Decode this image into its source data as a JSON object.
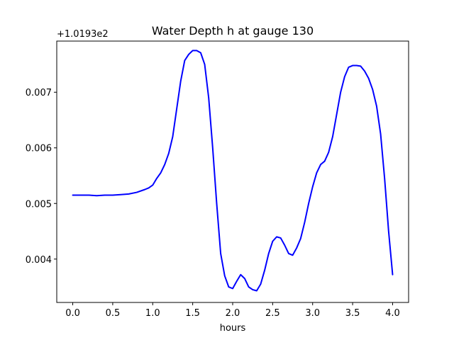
{
  "chart_data": {
    "type": "line",
    "title": "Water Depth h at gauge 130",
    "xlabel": "hours",
    "ylabel": "",
    "offset_label": "+1.0193e2",
    "xlim": [
      -0.2,
      4.2
    ],
    "ylim": [
      0.00322,
      0.00792
    ],
    "x_ticks": [
      0.0,
      0.5,
      1.0,
      1.5,
      2.0,
      2.5,
      3.0,
      3.5,
      4.0
    ],
    "x_tick_labels": [
      "0.0",
      "0.5",
      "1.0",
      "1.5",
      "2.0",
      "2.5",
      "3.0",
      "3.5",
      "4.0"
    ],
    "y_ticks": [
      0.004,
      0.005,
      0.006,
      0.007
    ],
    "y_tick_labels": [
      "0.004",
      "0.005",
      "0.006",
      "0.007"
    ],
    "grid": false,
    "series": [
      {
        "color": "#0000ff",
        "x": [
          0.0,
          0.1,
          0.2,
          0.3,
          0.4,
          0.5,
          0.6,
          0.7,
          0.8,
          0.9,
          0.95,
          1.0,
          1.05,
          1.1,
          1.15,
          1.2,
          1.25,
          1.3,
          1.35,
          1.4,
          1.45,
          1.5,
          1.55,
          1.6,
          1.65,
          1.7,
          1.75,
          1.8,
          1.85,
          1.9,
          1.95,
          2.0,
          2.05,
          2.1,
          2.15,
          2.2,
          2.25,
          2.3,
          2.35,
          2.4,
          2.45,
          2.5,
          2.55,
          2.6,
          2.65,
          2.7,
          2.75,
          2.8,
          2.85,
          2.9,
          2.95,
          3.0,
          3.05,
          3.1,
          3.15,
          3.2,
          3.25,
          3.3,
          3.35,
          3.4,
          3.45,
          3.5,
          3.55,
          3.6,
          3.65,
          3.7,
          3.75,
          3.8,
          3.85,
          3.9,
          3.95,
          4.0
        ],
        "y": [
          0.00515,
          0.00515,
          0.00515,
          0.00514,
          0.00515,
          0.00515,
          0.00516,
          0.00517,
          0.0052,
          0.00525,
          0.00528,
          0.00533,
          0.00545,
          0.00555,
          0.0057,
          0.0059,
          0.0062,
          0.0067,
          0.0072,
          0.00757,
          0.00768,
          0.00775,
          0.00775,
          0.00771,
          0.0075,
          0.0069,
          0.006,
          0.005,
          0.0041,
          0.0037,
          0.0035,
          0.00347,
          0.0036,
          0.00372,
          0.00365,
          0.0035,
          0.00345,
          0.00343,
          0.00355,
          0.0038,
          0.0041,
          0.00432,
          0.0044,
          0.00438,
          0.00425,
          0.0041,
          0.00407,
          0.0042,
          0.00437,
          0.00466,
          0.005,
          0.0053,
          0.00555,
          0.0057,
          0.00576,
          0.00592,
          0.0062,
          0.0066,
          0.007,
          0.00728,
          0.00745,
          0.00748,
          0.00748,
          0.00747,
          0.00738,
          0.00725,
          0.00705,
          0.00675,
          0.00625,
          0.00545,
          0.0045,
          0.00372
        ]
      }
    ]
  }
}
